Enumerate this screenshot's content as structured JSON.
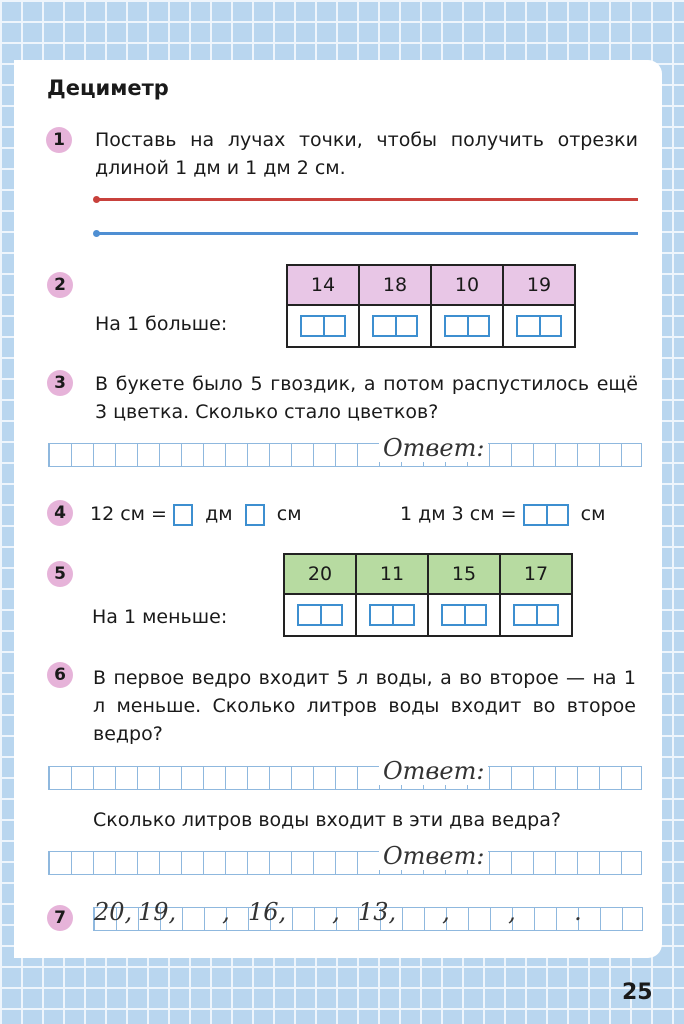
{
  "title": "Дециметр",
  "page_number": "25",
  "tasks": {
    "t1": {
      "num": "1",
      "text": "Поставь на лучах точки, чтобы получить отрезки длиной 1 дм и 1 дм 2 см.",
      "ray_colors": [
        "#c8413c",
        "#4f8fd3"
      ]
    },
    "t2": {
      "num": "2",
      "label": "На 1 больше:",
      "values": [
        "14",
        "18",
        "10",
        "19"
      ],
      "header_color": "#e8c6e6"
    },
    "t3": {
      "num": "3",
      "text": "В букете было 5 гвоздик, а потом распустилось ещё 3 цветка. Сколько стало цветков?",
      "answer_label": "Ответ:"
    },
    "t4": {
      "num": "4",
      "left_a": "12 см =",
      "left_b": "дм",
      "left_c": "см",
      "right_a": "1 дм 3 см =",
      "right_b": "см"
    },
    "t5": {
      "num": "5",
      "label": "На 1 меньше:",
      "values": [
        "20",
        "11",
        "15",
        "17"
      ],
      "header_color": "#b7dba1"
    },
    "t6": {
      "num": "6",
      "text": "В первое ведро входит 5 л воды, а во второе — на 1 л меньше. Сколько литров воды входит во второе ведро?",
      "answer_label": "Ответ:",
      "question2": "Сколько литров воды входит в эти два ведра?",
      "answer_label2": "Ответ:"
    },
    "t7": {
      "num": "7",
      "sequence": [
        "20,",
        "19,",
        "",
        ",",
        "16,",
        "",
        ",",
        "13,",
        "",
        ",",
        "",
        ",",
        "",
        "."
      ]
    }
  }
}
